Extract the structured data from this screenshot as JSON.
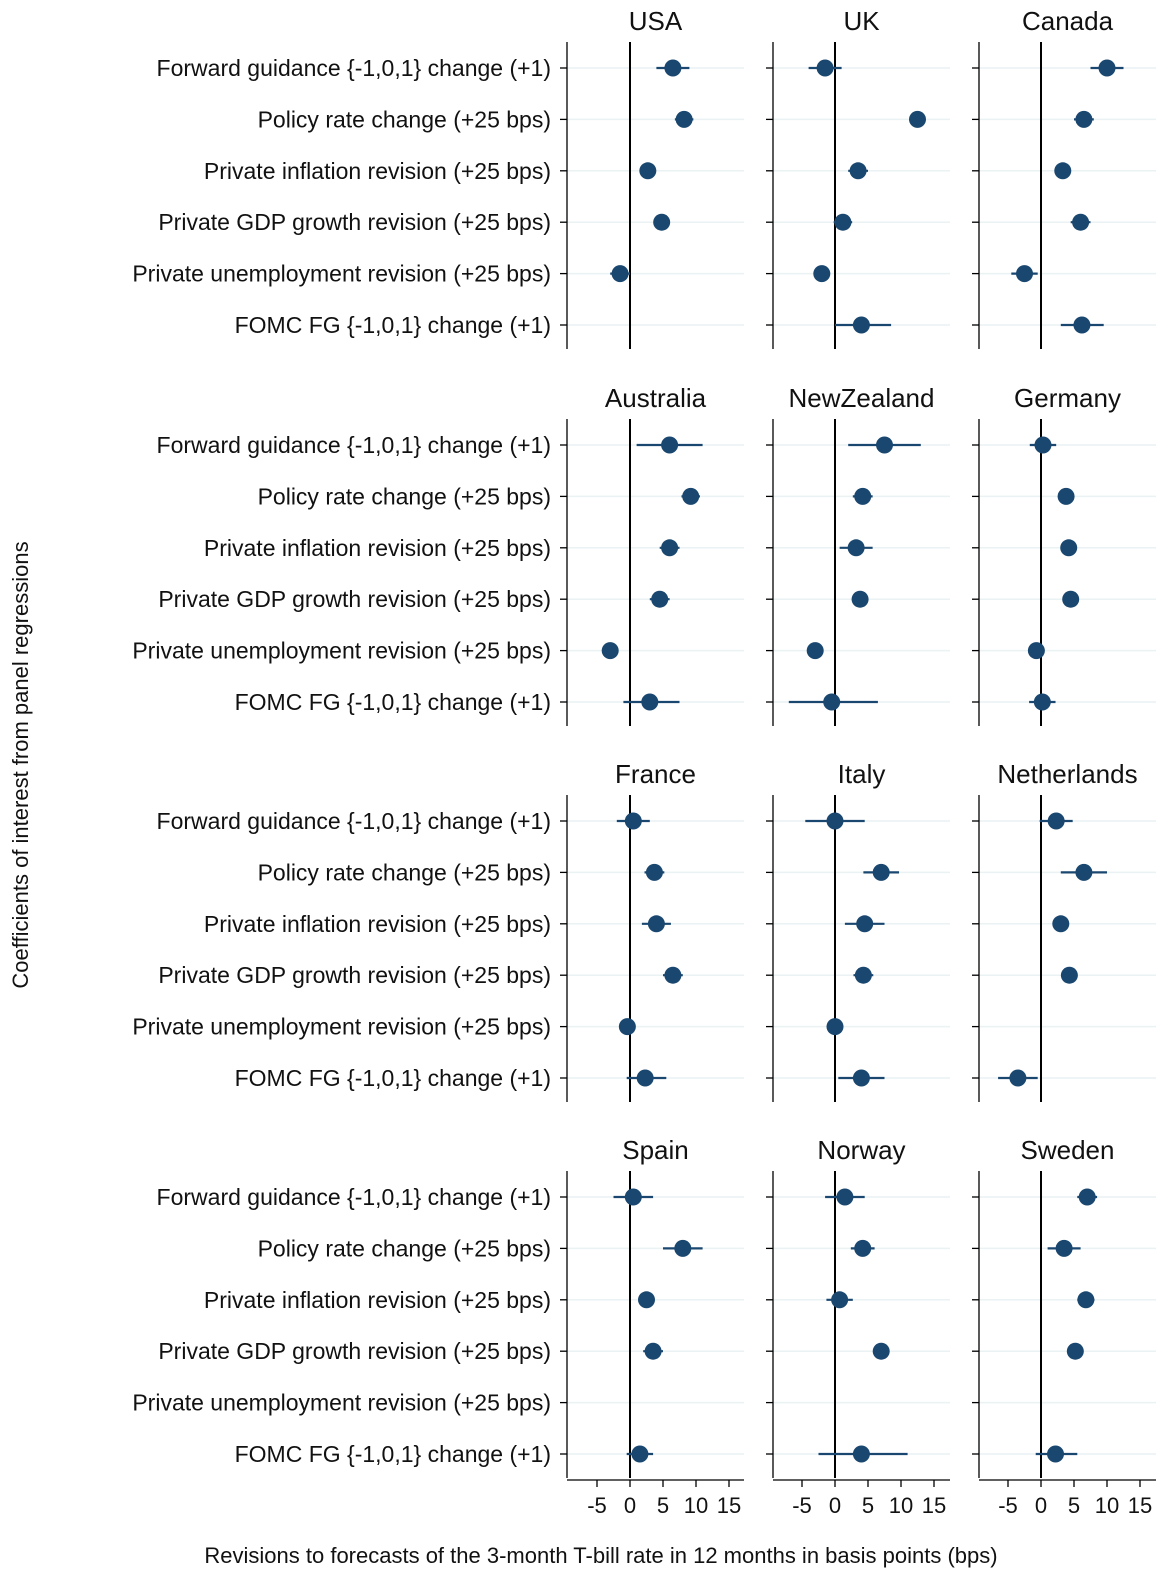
{
  "chart_data": {
    "type": "coefficient_plot",
    "ylabel": "Coefficients of interest from panel regressions",
    "xlabel": "Revisions to forecasts of the 3-month T-bill rate in 12 months in basis points (bps)",
    "xlim": [
      -10,
      17
    ],
    "xticks": [
      -5,
      0,
      5,
      10,
      15
    ],
    "xtick_labels": [
      "-5",
      "0",
      "5",
      "10",
      "15"
    ],
    "colors": {
      "marker": "#1a476f",
      "ci": "#1a476f",
      "gridline": "#eaf2f3",
      "zero_line": "#000000"
    },
    "rows": [
      "Forward guidance {-1,0,1} change (+1)",
      "Policy rate change (+25 bps)",
      "Private inflation revision (+25 bps)",
      "Private GDP growth revision (+25 bps)",
      "Private unemployment revision (+25 bps)",
      "FOMC FG {-1,0,1} change (+1)"
    ],
    "panels": [
      {
        "name": "USA",
        "estimates": [
          [
            6.5,
            4,
            9
          ],
          [
            8.2,
            6.8,
            9.6
          ],
          [
            2.7,
            1.7,
            3.7
          ],
          [
            4.8,
            4,
            5.6
          ],
          [
            -1.5,
            -3,
            0
          ],
          null
        ]
      },
      {
        "name": "UK",
        "estimates": [
          [
            -1.5,
            -4,
            1
          ],
          [
            12.5,
            11.5,
            13.5
          ],
          [
            3.5,
            2,
            5
          ],
          [
            1.2,
            -0.2,
            2.6
          ],
          [
            -2,
            -3,
            -1
          ],
          [
            4,
            0,
            8.5
          ]
        ]
      },
      {
        "name": "Canada",
        "estimates": [
          [
            10,
            7.5,
            12.5
          ],
          [
            6.5,
            5,
            8
          ],
          [
            3.3,
            2.3,
            4.3
          ],
          [
            6,
            4.5,
            7.5
          ],
          [
            -2.5,
            -4.5,
            -0.5
          ],
          [
            6.2,
            3,
            9.5
          ]
        ]
      },
      {
        "name": "Australia",
        "estimates": [
          [
            6,
            1,
            11
          ],
          [
            9.2,
            7.8,
            10.6
          ],
          [
            6,
            4.5,
            7.5
          ],
          [
            4.5,
            3,
            6
          ],
          [
            -3,
            -4,
            -2
          ],
          [
            3,
            -1,
            7.5
          ]
        ]
      },
      {
        "name": "NewZealand",
        "estimates": [
          [
            7.5,
            2,
            13
          ],
          [
            4.2,
            2.7,
            5.7
          ],
          [
            3.2,
            0.7,
            5.7
          ],
          [
            3.8,
            2.8,
            4.8
          ],
          [
            -3,
            -4,
            -2
          ],
          [
            -0.5,
            -7,
            6.5
          ]
        ]
      },
      {
        "name": "Germany",
        "estimates": [
          [
            0.3,
            -1.7,
            2.3
          ],
          [
            3.8,
            2.8,
            4.8
          ],
          [
            4.2,
            3.2,
            5.2
          ],
          [
            4.5,
            3.5,
            5.5
          ],
          [
            -0.7,
            -1.4,
            0
          ],
          [
            0.2,
            -1.8,
            2.2
          ]
        ]
      },
      {
        "name": "France",
        "estimates": [
          [
            0.5,
            -2,
            3
          ],
          [
            3.7,
            2.2,
            5.2
          ],
          [
            4,
            1.8,
            6.2
          ],
          [
            6.5,
            5,
            8
          ],
          [
            -0.4,
            -1,
            0.2
          ],
          [
            2.3,
            -0.5,
            5.5
          ]
        ]
      },
      {
        "name": "Italy",
        "estimates": [
          [
            0,
            -4.5,
            4.5
          ],
          [
            7,
            4.3,
            9.7
          ],
          [
            4.5,
            1.5,
            7.5
          ],
          [
            4.3,
            2.8,
            5.8
          ],
          [
            0,
            -0.6,
            0.6
          ],
          [
            4,
            0.5,
            7.5
          ]
        ]
      },
      {
        "name": "Netherlands",
        "estimates": [
          [
            2.3,
            -0.2,
            4.8
          ],
          [
            6.5,
            3,
            10
          ],
          [
            3,
            2,
            4
          ],
          [
            4.3,
            3.3,
            5.3
          ],
          null,
          [
            -3.5,
            -6.5,
            -0.5
          ]
        ]
      },
      {
        "name": "Spain",
        "estimates": [
          [
            0.5,
            -2.5,
            3.5
          ],
          [
            8,
            5,
            11
          ],
          [
            2.5,
            1.3,
            3.7
          ],
          [
            3.5,
            2,
            5
          ],
          null,
          [
            1.5,
            -0.5,
            3.5
          ]
        ]
      },
      {
        "name": "Norway",
        "estimates": [
          [
            1.5,
            -1.5,
            4.5
          ],
          [
            4.2,
            2.4,
            6
          ],
          [
            0.7,
            -1.3,
            2.7
          ],
          [
            7,
            5.8,
            8.2
          ],
          null,
          [
            4,
            -2.5,
            11
          ]
        ]
      },
      {
        "name": "Sweden",
        "estimates": [
          [
            7,
            5.5,
            8.5
          ],
          [
            3.5,
            1,
            6
          ],
          [
            6.8,
            5.5,
            8.1
          ],
          [
            5.2,
            4,
            6.4
          ],
          null,
          [
            2.2,
            -0.8,
            5.5
          ]
        ]
      }
    ]
  }
}
